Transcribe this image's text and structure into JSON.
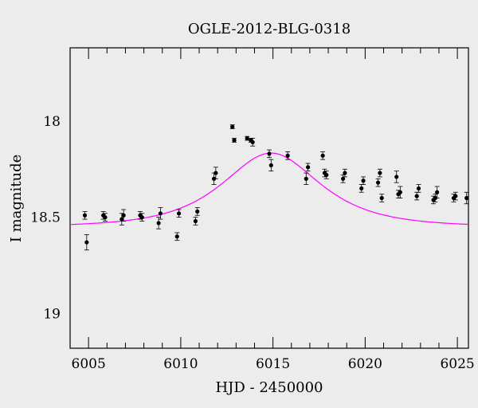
{
  "chart_data": {
    "type": "scatter",
    "title": "OGLE-2012-BLG-0318",
    "xlabel": "HJD - 2450000",
    "ylabel": "I magnitude",
    "xlim": [
      6004,
      6025.6
    ],
    "ylim": [
      19.18,
      17.62
    ],
    "y_inverted": true,
    "x_ticks": [
      6005,
      6010,
      6015,
      6020,
      6025
    ],
    "y_ticks": [
      18,
      18.5,
      19
    ],
    "grid": false,
    "colors": {
      "points": "#000000",
      "model": "#ff00ff",
      "background": "#ececec"
    },
    "series": [
      {
        "type": "scatter_errorbars",
        "x": [
          6004.8,
          6004.9,
          6005.8,
          6005.9,
          6006.8,
          6006.9,
          6007.8,
          6007.9,
          6008.8,
          6008.9,
          6009.8,
          6009.9,
          6010.8,
          6010.9,
          6011.8,
          6011.9,
          6012.8,
          6012.9,
          6013.6,
          6013.8,
          6013.9,
          6014.8,
          6014.9,
          6015.8,
          6016.8,
          6016.9,
          6017.7,
          6017.8,
          6017.9,
          6018.8,
          6018.9,
          6019.8,
          6019.9,
          6020.7,
          6020.8,
          6020.9,
          6021.7,
          6021.8,
          6021.9,
          6022.8,
          6022.9,
          6023.7,
          6023.8,
          6023.9,
          6024.8,
          6024.9,
          6025.5
        ],
        "y": [
          18.49,
          18.63,
          18.49,
          18.5,
          18.51,
          18.49,
          18.49,
          18.5,
          18.53,
          18.48,
          18.6,
          18.48,
          18.52,
          18.47,
          18.3,
          18.27,
          18.03,
          18.1,
          18.09,
          18.1,
          18.11,
          18.17,
          18.23,
          18.18,
          18.3,
          18.24,
          18.18,
          18.27,
          18.28,
          18.3,
          18.27,
          18.35,
          18.31,
          18.32,
          18.27,
          18.4,
          18.29,
          18.38,
          18.37,
          18.39,
          18.35,
          18.41,
          18.4,
          18.37,
          18.4,
          18.39,
          18.4
        ],
        "yerr": [
          0.02,
          0.04,
          0.02,
          0.02,
          0.03,
          0.03,
          0.02,
          0.02,
          0.03,
          0.03,
          0.02,
          0.02,
          0.02,
          0.02,
          0.03,
          0.03,
          0.01,
          0.01,
          0.01,
          0.01,
          0.02,
          0.02,
          0.03,
          0.02,
          0.03,
          0.02,
          0.02,
          0.02,
          0.02,
          0.02,
          0.02,
          0.02,
          0.02,
          0.02,
          0.02,
          0.02,
          0.03,
          0.02,
          0.03,
          0.02,
          0.02,
          0.02,
          0.02,
          0.03,
          0.02,
          0.02,
          0.03
        ]
      },
      {
        "type": "line",
        "model": "paczynski",
        "base_mag": 18.55,
        "t0": 6014.9,
        "tE": 3.37,
        "u0": 0.9
      }
    ]
  }
}
